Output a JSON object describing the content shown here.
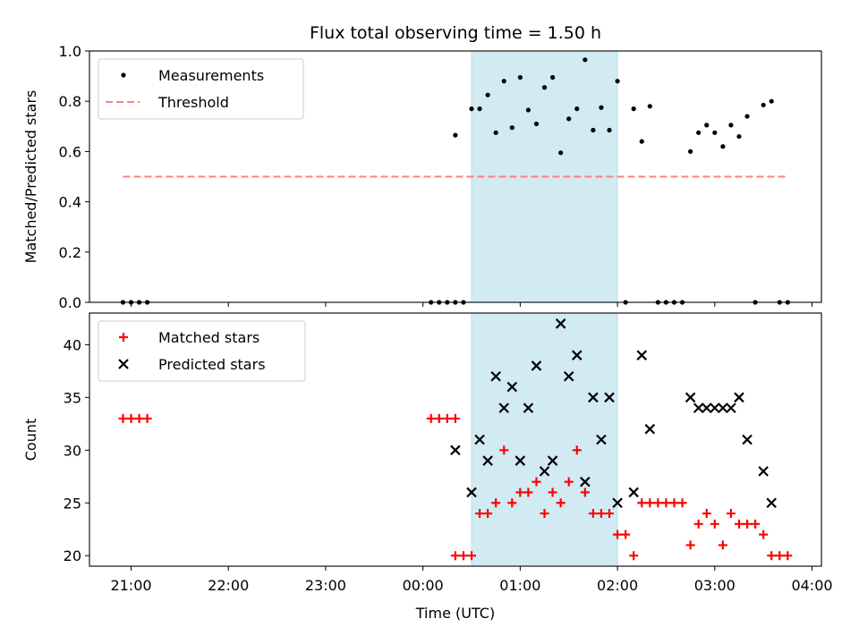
{
  "chart_data": [
    {
      "type": "scatter",
      "title": "Flux total observing time = 1.50 h",
      "xlabel": "",
      "ylabel": "Matched/Predicted stars",
      "ylim": [
        0,
        1.0
      ],
      "yticks": [
        "0.0",
        "0.2",
        "0.4",
        "0.6",
        "0.8",
        "1.0"
      ],
      "legend_position": "upper-left",
      "shaded_span": {
        "start": "00:30",
        "end": "02:00",
        "color": "#add8e6"
      },
      "series": [
        {
          "name": "Measurements",
          "marker": "dot",
          "color": "#000000",
          "points": [
            [
              "20:55",
              0.0
            ],
            [
              "21:00",
              0.0
            ],
            [
              "21:05",
              0.0
            ],
            [
              "21:10",
              0.0
            ],
            [
              "00:05",
              0.0
            ],
            [
              "00:10",
              0.0
            ],
            [
              "00:15",
              0.0
            ],
            [
              "00:20",
              0.0
            ],
            [
              "00:25",
              0.0
            ],
            [
              "00:20",
              0.665
            ],
            [
              "00:30",
              0.77
            ],
            [
              "00:35",
              0.77
            ],
            [
              "00:40",
              0.825
            ],
            [
              "00:45",
              0.675
            ],
            [
              "00:50",
              0.88
            ],
            [
              "00:55",
              0.695
            ],
            [
              "01:00",
              0.895
            ],
            [
              "01:05",
              0.765
            ],
            [
              "01:10",
              0.71
            ],
            [
              "01:15",
              0.855
            ],
            [
              "01:20",
              0.895
            ],
            [
              "01:25",
              0.595
            ],
            [
              "01:30",
              0.73
            ],
            [
              "01:35",
              0.77
            ],
            [
              "01:40",
              0.965
            ],
            [
              "01:45",
              0.685
            ],
            [
              "01:50",
              0.775
            ],
            [
              "01:55",
              0.685
            ],
            [
              "02:00",
              0.88
            ],
            [
              "02:05",
              0.0
            ],
            [
              "02:10",
              0.77
            ],
            [
              "02:15",
              0.64
            ],
            [
              "02:20",
              0.78
            ],
            [
              "02:25",
              0.0
            ],
            [
              "02:30",
              0.0
            ],
            [
              "02:35",
              0.0
            ],
            [
              "02:40",
              0.0
            ],
            [
              "02:45",
              0.6
            ],
            [
              "02:50",
              0.675
            ],
            [
              "02:55",
              0.705
            ],
            [
              "03:00",
              0.675
            ],
            [
              "03:05",
              0.62
            ],
            [
              "03:10",
              0.705
            ],
            [
              "03:15",
              0.66
            ],
            [
              "03:20",
              0.74
            ],
            [
              "03:25",
              0.0
            ],
            [
              "03:30",
              0.785
            ],
            [
              "03:35",
              0.8
            ],
            [
              "03:40",
              0.0
            ],
            [
              "03:45",
              0.0
            ]
          ]
        },
        {
          "name": "Threshold",
          "style": "dashed",
          "color": "#ff8080",
          "points": [
            [
              "20:55",
              0.5
            ],
            [
              "03:45",
              0.5
            ]
          ]
        }
      ]
    },
    {
      "type": "scatter",
      "title": "",
      "xlabel": "Time (UTC)",
      "ylabel": "Count",
      "ylim": [
        19,
        43
      ],
      "yticks": [
        "20",
        "25",
        "30",
        "35",
        "40"
      ],
      "xticks": [
        "21:00",
        "22:00",
        "23:00",
        "00:00",
        "01:00",
        "02:00",
        "03:00",
        "04:00"
      ],
      "legend_position": "upper-left",
      "shaded_span": {
        "start": "00:30",
        "end": "02:00",
        "color": "#add8e6"
      },
      "series": [
        {
          "name": "Matched stars",
          "marker": "plus",
          "color": "#ff0000",
          "points": [
            [
              "20:55",
              33
            ],
            [
              "21:00",
              33
            ],
            [
              "21:05",
              33
            ],
            [
              "21:10",
              33
            ],
            [
              "00:05",
              33
            ],
            [
              "00:10",
              33
            ],
            [
              "00:15",
              33
            ],
            [
              "00:20",
              33
            ],
            [
              "00:20",
              20
            ],
            [
              "00:25",
              20
            ],
            [
              "00:30",
              20
            ],
            [
              "00:35",
              24
            ],
            [
              "00:40",
              24
            ],
            [
              "00:45",
              25
            ],
            [
              "00:50",
              30
            ],
            [
              "00:55",
              25
            ],
            [
              "01:00",
              26
            ],
            [
              "01:05",
              26
            ],
            [
              "01:10",
              27
            ],
            [
              "01:15",
              24
            ],
            [
              "01:20",
              26
            ],
            [
              "01:25",
              25
            ],
            [
              "01:30",
              27
            ],
            [
              "01:35",
              30
            ],
            [
              "01:40",
              26
            ],
            [
              "01:45",
              24
            ],
            [
              "01:50",
              24
            ],
            [
              "01:55",
              24
            ],
            [
              "02:00",
              22
            ],
            [
              "02:05",
              22
            ],
            [
              "02:10",
              20
            ],
            [
              "02:15",
              25
            ],
            [
              "02:20",
              25
            ],
            [
              "02:25",
              25
            ],
            [
              "02:30",
              25
            ],
            [
              "02:35",
              25
            ],
            [
              "02:40",
              25
            ],
            [
              "02:45",
              21
            ],
            [
              "02:50",
              23
            ],
            [
              "02:55",
              24
            ],
            [
              "03:00",
              23
            ],
            [
              "03:05",
              21
            ],
            [
              "03:10",
              24
            ],
            [
              "03:15",
              23
            ],
            [
              "03:20",
              23
            ],
            [
              "03:25",
              23
            ],
            [
              "03:30",
              22
            ],
            [
              "03:35",
              20
            ],
            [
              "03:40",
              20
            ],
            [
              "03:45",
              20
            ]
          ]
        },
        {
          "name": "Predicted stars",
          "marker": "x",
          "color": "#000000",
          "points": [
            [
              "00:20",
              30
            ],
            [
              "00:30",
              26
            ],
            [
              "00:35",
              31
            ],
            [
              "00:40",
              29
            ],
            [
              "00:45",
              37
            ],
            [
              "00:50",
              34
            ],
            [
              "00:55",
              36
            ],
            [
              "01:00",
              29
            ],
            [
              "01:05",
              34
            ],
            [
              "01:10",
              38
            ],
            [
              "01:15",
              28
            ],
            [
              "01:20",
              29
            ],
            [
              "01:25",
              42
            ],
            [
              "01:30",
              37
            ],
            [
              "01:35",
              39
            ],
            [
              "01:40",
              27
            ],
            [
              "01:45",
              35
            ],
            [
              "01:50",
              31
            ],
            [
              "01:55",
              35
            ],
            [
              "02:00",
              25
            ],
            [
              "02:10",
              26
            ],
            [
              "02:15",
              39
            ],
            [
              "02:20",
              32
            ],
            [
              "02:45",
              35
            ],
            [
              "02:50",
              34
            ],
            [
              "02:55",
              34
            ],
            [
              "03:00",
              34
            ],
            [
              "03:05",
              34
            ],
            [
              "03:10",
              34
            ],
            [
              "03:15",
              35
            ],
            [
              "03:20",
              31
            ],
            [
              "03:30",
              28
            ],
            [
              "03:35",
              25
            ]
          ]
        }
      ]
    }
  ]
}
